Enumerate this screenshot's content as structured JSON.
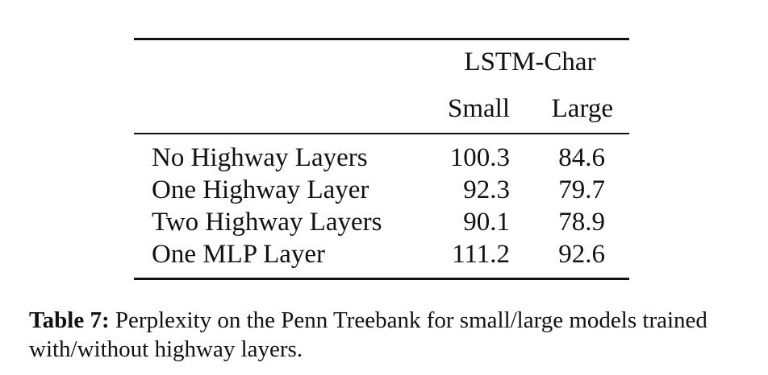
{
  "table": {
    "group_header": "LSTM-Char",
    "columns": [
      "Small",
      "Large"
    ],
    "rows": [
      {
        "label": "No Highway Layers",
        "small": "100.3",
        "large": "84.6"
      },
      {
        "label": "One Highway Layer",
        "small": "92.3",
        "large": "79.7"
      },
      {
        "label": "Two Highway Layers",
        "small": "90.1",
        "large": "78.9"
      },
      {
        "label": "One MLP Layer",
        "small": "111.2",
        "large": "92.6"
      }
    ]
  },
  "caption": {
    "label": "Table 7:",
    "text": " Perplexity on the Penn Treebank for small/large models trained with/without highway layers."
  }
}
